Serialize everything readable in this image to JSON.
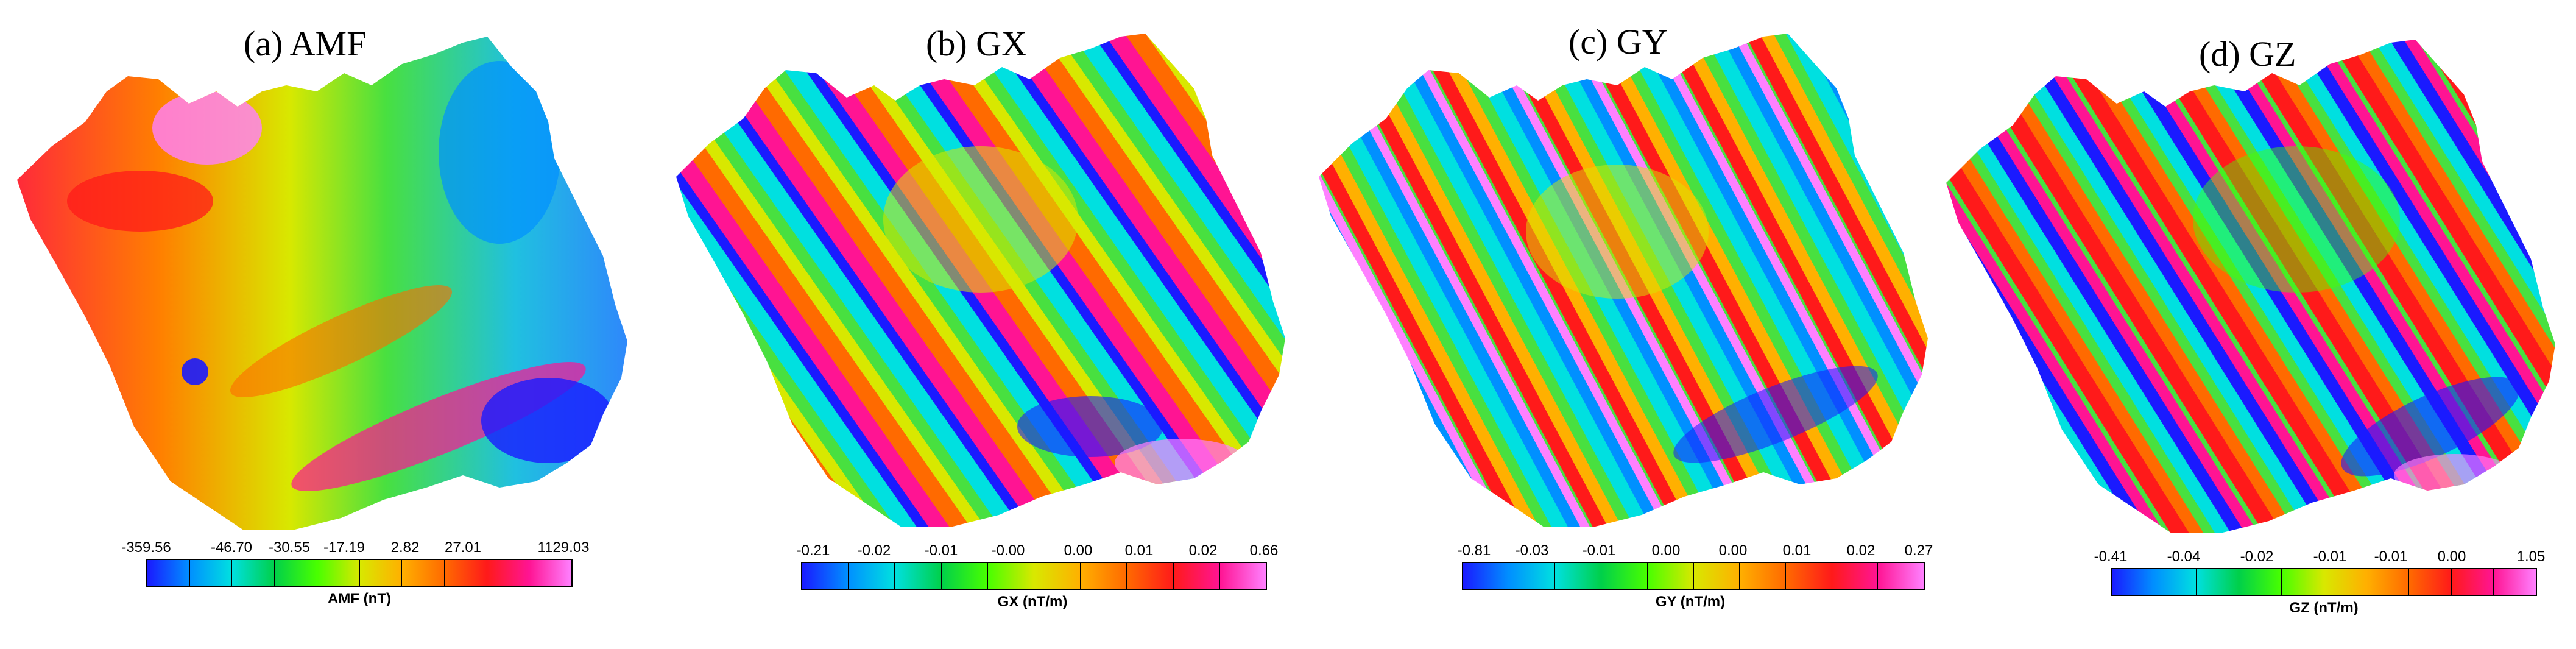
{
  "panels": [
    {
      "title": "(a) AMF",
      "ticks": [
        "-359.56",
        "-46.70",
        "-30.55",
        "-17.19",
        "2.82",
        "27.01",
        "1129.03"
      ],
      "unit": "AMF (nT)"
    },
    {
      "title": "(b) GX",
      "ticks": [
        "-0.21",
        "-0.02",
        "-0.01",
        "-0.00",
        "0.00",
        "0.01",
        "0.02",
        "0.66"
      ],
      "unit": "GX (nT/m)"
    },
    {
      "title": "(c) GY",
      "ticks": [
        "-0.81",
        "-0.03",
        "-0.01",
        "0.00",
        "0.00",
        "0.01",
        "0.02",
        "0.27"
      ],
      "unit": "GY (nT/m)"
    },
    {
      "title": "(d) GZ",
      "ticks": [
        "-0.41",
        "-0.04",
        "-0.02",
        "-0.01",
        "-0.01",
        "0.00",
        "1.05"
      ],
      "unit": "GZ (nT/m)"
    }
  ],
  "colormap": [
    "#1a1aff",
    "#0090ff",
    "#00e0e0",
    "#00d04a",
    "#48ff00",
    "#d8e800",
    "#ffb000",
    "#ff6a00",
    "#ff1a1a",
    "#ff1493",
    "#ff80ff"
  ]
}
